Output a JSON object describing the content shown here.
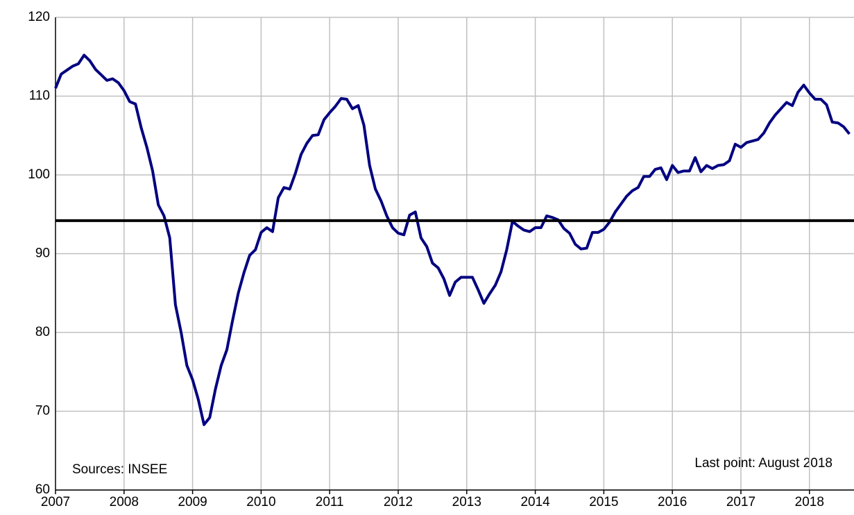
{
  "chart_data": {
    "type": "line",
    "x": [
      2007,
      2007.083,
      2007.167,
      2007.25,
      2007.333,
      2007.417,
      2007.5,
      2007.583,
      2007.667,
      2007.75,
      2007.833,
      2007.917,
      2008,
      2008.083,
      2008.167,
      2008.25,
      2008.333,
      2008.417,
      2008.5,
      2008.583,
      2008.667,
      2008.75,
      2008.833,
      2008.917,
      2009,
      2009.083,
      2009.167,
      2009.25,
      2009.333,
      2009.417,
      2009.5,
      2009.583,
      2009.667,
      2009.75,
      2009.833,
      2009.917,
      2010,
      2010.083,
      2010.167,
      2010.25,
      2010.333,
      2010.417,
      2010.5,
      2010.583,
      2010.667,
      2010.75,
      2010.833,
      2010.917,
      2011,
      2011.083,
      2011.167,
      2011.25,
      2011.333,
      2011.417,
      2011.5,
      2011.583,
      2011.667,
      2011.75,
      2011.833,
      2011.917,
      2012,
      2012.083,
      2012.167,
      2012.25,
      2012.333,
      2012.417,
      2012.5,
      2012.583,
      2012.667,
      2012.75,
      2012.833,
      2012.917,
      2013,
      2013.083,
      2013.167,
      2013.25,
      2013.333,
      2013.417,
      2013.5,
      2013.583,
      2013.667,
      2013.75,
      2013.833,
      2013.917,
      2014,
      2014.083,
      2014.167,
      2014.25,
      2014.333,
      2014.417,
      2014.5,
      2014.583,
      2014.667,
      2014.75,
      2014.833,
      2014.917,
      2015,
      2015.083,
      2015.167,
      2015.25,
      2015.333,
      2015.417,
      2015.5,
      2015.583,
      2015.667,
      2015.75,
      2015.833,
      2015.917,
      2016,
      2016.083,
      2016.167,
      2016.25,
      2016.333,
      2016.417,
      2016.5,
      2016.583,
      2016.667,
      2016.75,
      2016.833,
      2016.917,
      2017,
      2017.083,
      2017.167,
      2017.25,
      2017.333,
      2017.417,
      2017.5,
      2017.583,
      2017.667,
      2017.75,
      2017.833,
      2017.917,
      2018,
      2018.083,
      2018.167,
      2018.25,
      2018.333,
      2018.417,
      2018.5,
      2018.583
    ],
    "values": [
      111,
      112.8,
      113.3,
      113.8,
      114.1,
      115.2,
      114.5,
      113.4,
      112.7,
      112,
      112.2,
      111.7,
      110.7,
      109.3,
      109,
      106,
      103.5,
      100.5,
      96.2,
      94.8,
      92,
      83.5,
      80,
      75.8,
      74,
      71.5,
      68.3,
      69.2,
      72.8,
      75.8,
      77.8,
      81.5,
      85,
      87.6,
      89.8,
      90.5,
      92.7,
      93.3,
      92.8,
      97.1,
      98.4,
      98.2,
      100.2,
      102.6,
      104,
      105,
      105.1,
      107,
      107.9,
      108.7,
      109.7,
      109.6,
      108.4,
      108.8,
      106.3,
      101.2,
      98.2,
      96.7,
      94.8,
      93.3,
      92.6,
      92.4,
      94.9,
      95.3,
      92,
      90.9,
      88.8,
      88.2,
      86.8,
      84.7,
      86.4,
      87,
      87,
      87,
      85.4,
      83.7,
      84.9,
      86,
      87.7,
      90.5,
      94.1,
      93.5,
      93,
      92.8,
      93.3,
      93.3,
      94.8,
      94.6,
      94.3,
      93.2,
      92.6,
      91.2,
      90.6,
      90.7,
      92.7,
      92.7,
      93.1,
      94,
      95.3,
      96.3,
      97.3,
      98,
      98.4,
      99.8,
      99.8,
      100.7,
      100.9,
      99.4,
      101.2,
      100.3,
      100.5,
      100.5,
      102.2,
      100.4,
      101.2,
      100.8,
      101.2,
      101.3,
      101.8,
      103.9,
      103.5,
      104.1,
      104.3,
      104.5,
      105.3,
      106.6,
      107.6,
      108.4,
      109.2,
      108.8,
      110.5,
      111.4,
      110.4,
      109.6,
      109.6,
      108.9,
      106.7,
      106.6,
      106.1,
      105.2
    ],
    "color": "#000080",
    "reference_line": {
      "value": 94.2,
      "color": "#000000"
    },
    "xlim": [
      2007,
      2018.65
    ],
    "xticks": [
      2007,
      2008,
      2009,
      2010,
      2011,
      2012,
      2013,
      2014,
      2015,
      2016,
      2017,
      2018
    ],
    "ylim": [
      60,
      120
    ],
    "yticks": [
      60,
      70,
      80,
      90,
      100,
      110,
      120
    ],
    "grid": true,
    "annotations": [
      "Sources: INSEE",
      "Last point: August 2018"
    ]
  }
}
